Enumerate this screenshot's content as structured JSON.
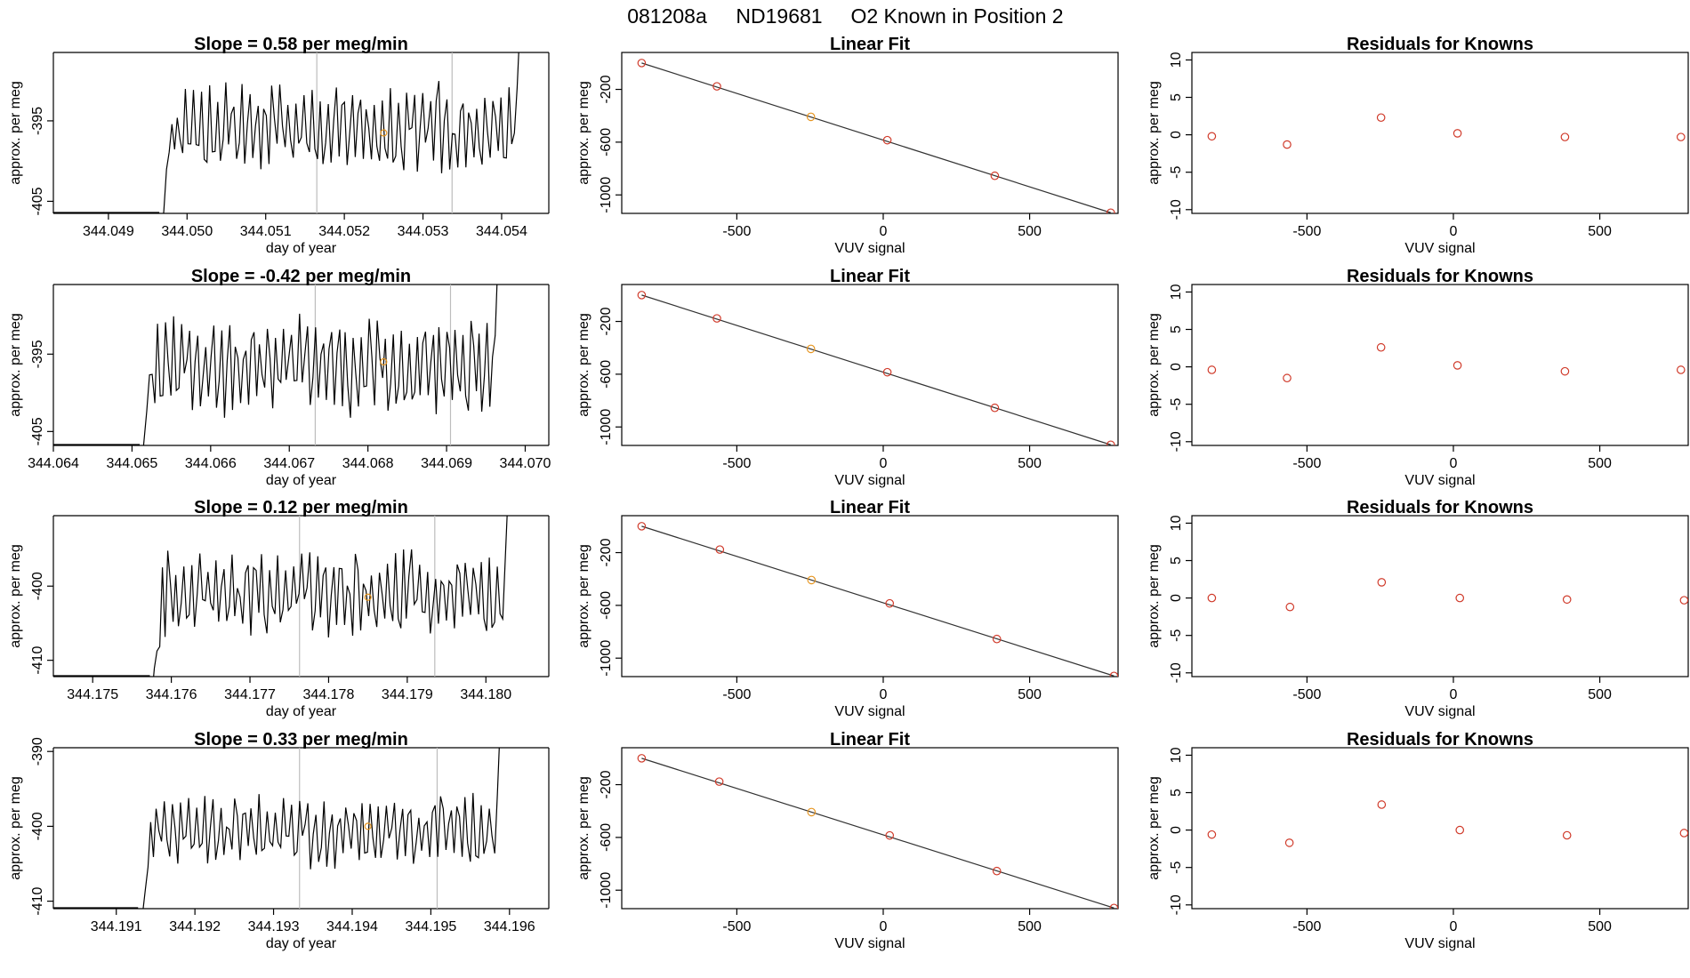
{
  "figure_title": {
    "run": "081208a",
    "tank": "ND19681",
    "description": "O2 Known in Position  2"
  },
  "colors": {
    "points": "#d03a2a",
    "highlight": "#e69520",
    "trace": "#000000",
    "vertical_markers": "#bdbdbd"
  },
  "chart_data": [
    {
      "type": "line",
      "panel": "timeseries",
      "row": 1,
      "title": "Slope =  0.58  per meg/min",
      "xlabel": "day of year",
      "ylabel": "approx. per meg",
      "xlim": [
        344.0483,
        344.0546
      ],
      "ylim": [
        -406.5,
        -386.5
      ],
      "xticks": [
        "344.049",
        "344.050",
        "344.051",
        "344.052",
        "344.053",
        "344.054"
      ],
      "yticks": [
        "-395",
        "-405"
      ],
      "signal_window": [
        344.04967,
        344.0543
      ],
      "vertical_markers": [
        344.05165,
        344.05337
      ],
      "highlight_point": {
        "x": 344.0525,
        "y": -396.5
      },
      "signal_mean": -396.0,
      "signal_amplitude": 6.0
    },
    {
      "type": "scatter",
      "panel": "linear_fit",
      "row": 1,
      "title": "Linear Fit",
      "xlabel": "VUV signal",
      "ylabel": "approx. per meg",
      "xlim": [
        -893,
        802
      ],
      "ylim": [
        -1140,
        80
      ],
      "xticks": [
        "-500",
        "0",
        "500"
      ],
      "yticks": [
        "-200",
        "-600",
        "-1000"
      ],
      "x": [
        -825,
        -568,
        -247,
        14,
        381,
        777
      ],
      "y": [
        0,
        -177,
        -408,
        -585,
        -855,
        -1135
      ],
      "highlight_index": 2,
      "fit_line": {
        "x": [
          -825,
          777
        ],
        "y": [
          0,
          -1135
        ]
      }
    },
    {
      "type": "scatter",
      "panel": "residuals",
      "row": 1,
      "title": "Residuals for Knowns",
      "xlabel": "VUV signal",
      "ylabel": "approx. per meg",
      "xlim": [
        -893,
        802
      ],
      "ylim": [
        -10.5,
        11
      ],
      "xticks": [
        "-500",
        "0",
        "500"
      ],
      "yticks": [
        "10",
        "5",
        "0",
        "-5",
        "-10"
      ],
      "x": [
        -825,
        -568,
        -247,
        14,
        381,
        777
      ],
      "y": [
        -0.2,
        -1.3,
        2.3,
        0.2,
        -0.3,
        -0.3
      ]
    },
    {
      "type": "line",
      "panel": "timeseries",
      "row": 2,
      "title": "Slope =  -0.42  per meg/min",
      "xlabel": "day of year",
      "ylabel": "approx. per meg",
      "xlim": [
        344.064,
        344.0703
      ],
      "ylim": [
        -406.8,
        -386.0
      ],
      "xticks": [
        "344.064",
        "344.065",
        "344.066",
        "344.067",
        "344.068",
        "344.069",
        "344.070"
      ],
      "yticks": [
        "-395",
        "-405"
      ],
      "signal_window": [
        344.06512,
        344.06972
      ],
      "vertical_markers": [
        344.06733,
        344.06905
      ],
      "highlight_point": {
        "x": 344.0682,
        "y": -396.0
      },
      "signal_mean": -396.5,
      "signal_amplitude": 7.0
    },
    {
      "type": "scatter",
      "panel": "linear_fit",
      "row": 2,
      "title": "Linear Fit",
      "xlabel": "VUV signal",
      "ylabel": "approx. per meg",
      "xlim": [
        -893,
        802
      ],
      "ylim": [
        -1140,
        80
      ],
      "xticks": [
        "-500",
        "0",
        "500"
      ],
      "yticks": [
        "-200",
        "-600",
        "-1000"
      ],
      "x": [
        -825,
        -568,
        -247,
        14,
        381,
        777
      ],
      "y": [
        0,
        -177,
        -408,
        -585,
        -855,
        -1135
      ],
      "highlight_index": 2,
      "fit_line": {
        "x": [
          -825,
          777
        ],
        "y": [
          0,
          -1135
        ]
      }
    },
    {
      "type": "scatter",
      "panel": "residuals",
      "row": 2,
      "title": "Residuals for Knowns",
      "xlabel": "VUV signal",
      "ylabel": "approx. per meg",
      "xlim": [
        -893,
        802
      ],
      "ylim": [
        -10.5,
        11
      ],
      "xticks": [
        "-500",
        "0",
        "500"
      ],
      "yticks": [
        "10",
        "5",
        "0",
        "-5",
        "-10"
      ],
      "x": [
        -825,
        -568,
        -247,
        14,
        381,
        777
      ],
      "y": [
        -0.4,
        -1.5,
        2.6,
        0.2,
        -0.6,
        -0.4
      ]
    },
    {
      "type": "line",
      "panel": "timeseries",
      "row": 3,
      "title": "Slope =  0.12  per meg/min",
      "xlabel": "day of year",
      "ylabel": "approx. per meg",
      "xlim": [
        344.1745,
        344.1808
      ],
      "ylim": [
        -412.2,
        -390.5
      ],
      "xticks": [
        "344.175",
        "344.176",
        "344.177",
        "344.178",
        "344.179",
        "344.180"
      ],
      "yticks": [
        "-400",
        "-410"
      ],
      "signal_window": [
        344.17575,
        344.18035
      ],
      "vertical_markers": [
        344.17763,
        344.17935
      ],
      "highlight_point": {
        "x": 344.1785,
        "y": -401.5
      },
      "signal_mean": -401.0,
      "signal_amplitude": 6.5
    },
    {
      "type": "scatter",
      "panel": "linear_fit",
      "row": 3,
      "title": "Linear Fit",
      "xlabel": "VUV signal",
      "ylabel": "approx. per meg",
      "xlim": [
        -893,
        802
      ],
      "ylim": [
        -1140,
        80
      ],
      "xticks": [
        "-500",
        "0",
        "500"
      ],
      "yticks": [
        "-200",
        "-600",
        "-1000"
      ],
      "x": [
        -825,
        -558,
        -245,
        22,
        388,
        788
      ],
      "y": [
        0,
        -177,
        -408,
        -585,
        -855,
        -1135
      ],
      "highlight_index": 2,
      "fit_line": {
        "x": [
          -825,
          788
        ],
        "y": [
          0,
          -1135
        ]
      }
    },
    {
      "type": "scatter",
      "panel": "residuals",
      "row": 3,
      "title": "Residuals for Knowns",
      "xlabel": "VUV signal",
      "ylabel": "approx. per meg",
      "xlim": [
        -893,
        802
      ],
      "ylim": [
        -10.5,
        11
      ],
      "xticks": [
        "-500",
        "0",
        "500"
      ],
      "yticks": [
        "10",
        "5",
        "0",
        "-5",
        "-10"
      ],
      "x": [
        -825,
        -558,
        -245,
        22,
        388,
        788
      ],
      "y": [
        0,
        -1.2,
        2.1,
        0,
        -0.2,
        -0.3
      ]
    },
    {
      "type": "line",
      "panel": "timeseries",
      "row": 4,
      "title": "Slope =  0.33  per meg/min",
      "xlabel": "day of year",
      "ylabel": "approx. per meg",
      "xlim": [
        344.1902,
        344.1965
      ],
      "ylim": [
        -411.0,
        -389.5
      ],
      "xticks": [
        "344.191",
        "344.192",
        "344.193",
        "344.194",
        "344.195",
        "344.196"
      ],
      "yticks": [
        "-390",
        "-400",
        "-410"
      ],
      "signal_window": [
        344.1913,
        344.19595
      ],
      "vertical_markers": [
        344.19333,
        344.19508
      ],
      "highlight_point": {
        "x": 344.1942,
        "y": -400.0
      },
      "signal_mean": -400.5,
      "signal_amplitude": 5.5
    },
    {
      "type": "scatter",
      "panel": "linear_fit",
      "row": 4,
      "title": "Linear Fit",
      "xlabel": "VUV signal",
      "ylabel": "approx. per meg",
      "xlim": [
        -893,
        802
      ],
      "ylim": [
        -1140,
        80
      ],
      "xticks": [
        "-500",
        "0",
        "500"
      ],
      "yticks": [
        "-200",
        "-600",
        "-1000"
      ],
      "x": [
        -825,
        -560,
        -245,
        22,
        388,
        788
      ],
      "y": [
        0,
        -177,
        -408,
        -585,
        -855,
        -1135
      ],
      "highlight_index": 2,
      "fit_line": {
        "x": [
          -825,
          788
        ],
        "y": [
          0,
          -1135
        ]
      }
    },
    {
      "type": "scatter",
      "panel": "residuals",
      "row": 4,
      "title": "Residuals for Knowns",
      "xlabel": "VUV signal",
      "ylabel": "approx. per meg",
      "xlim": [
        -893,
        802
      ],
      "ylim": [
        -10.5,
        11
      ],
      "xticks": [
        "-500",
        "0",
        "500"
      ],
      "yticks": [
        "10",
        "5",
        "0",
        "-5",
        "-10"
      ],
      "x": [
        -825,
        -560,
        -245,
        22,
        388,
        788
      ],
      "y": [
        -0.6,
        -1.7,
        3.4,
        0,
        -0.7,
        -0.4
      ]
    }
  ]
}
